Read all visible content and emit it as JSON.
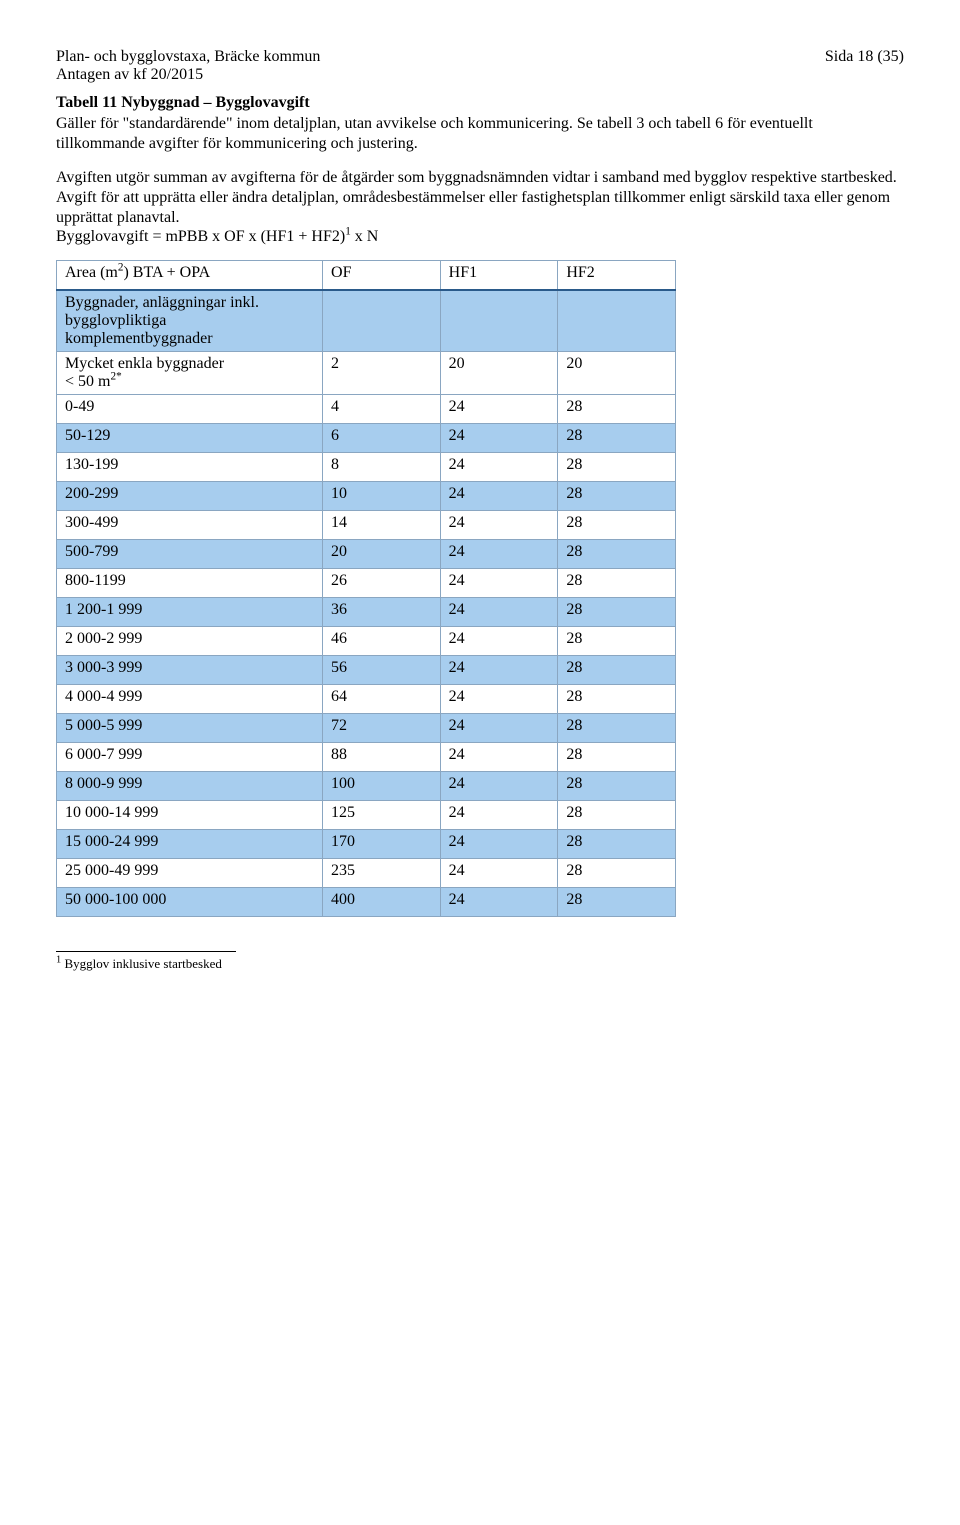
{
  "header": {
    "left_top": "Plan- och bygglovstaxa, Bräcke kommun",
    "left_sub": "Antagen av kf 20/2015",
    "right_top": "Sida 18 (35)"
  },
  "title": "Tabell 11 Nybyggnad – Bygglovavgift",
  "para1_a": "Gäller för \"standardärende\" inom detaljplan, utan avvikelse och kommunicering. Se tabell 3 och tabell 6 för eventuellt tillkommande avgifter för kommunicering och justering.",
  "para2": "Avgiften utgör summan av avgifterna för de åtgärder som byggnadsnämnden vidtar i samband med bygglov respektive startbesked.",
  "para3": "Avgift för att upprätta eller ändra detaljplan, områdesbestämmelser eller fastighetsplan tillkommer enligt särskild taxa eller genom upprättat planavtal.",
  "formula_prefix": "Bygglovavgift = mPBB x OF x (HF1 + HF2)",
  "formula_sup": "1",
  "formula_suffix": " x N",
  "table": {
    "headers": {
      "c0a": "Area (m",
      "c0sup": "2",
      "c0b": ") BTA + OPA",
      "c1": "OF",
      "c2": "HF1",
      "c3": "HF2"
    },
    "subheader": "Byggnader, anläggningar inkl. bygglovpliktiga komplementbyggnader",
    "row_simple": {
      "label_a": "Mycket enkla byggnader",
      "label_b_pre": "< 50 m",
      "label_b_sup": "2*",
      "of": "2",
      "hf1": "20",
      "hf2": "20"
    },
    "rows": [
      {
        "label": "0-49",
        "of": "4",
        "hf1": "24",
        "hf2": "28",
        "shaded": false
      },
      {
        "label": "50-129",
        "of": "6",
        "hf1": "24",
        "hf2": "28",
        "shaded": true
      },
      {
        "label": "130-199",
        "of": "8",
        "hf1": "24",
        "hf2": "28",
        "shaded": false
      },
      {
        "label": "200-299",
        "of": "10",
        "hf1": "24",
        "hf2": "28",
        "shaded": true
      },
      {
        "label": "300-499",
        "of": "14",
        "hf1": "24",
        "hf2": "28",
        "shaded": false
      },
      {
        "label": "500-799",
        "of": "20",
        "hf1": "24",
        "hf2": "28",
        "shaded": true
      },
      {
        "label": "800-1199",
        "of": "26",
        "hf1": "24",
        "hf2": "28",
        "shaded": false
      },
      {
        "label": "1 200-1 999",
        "of": "36",
        "hf1": "24",
        "hf2": "28",
        "shaded": true
      },
      {
        "label": "2 000-2 999",
        "of": "46",
        "hf1": "24",
        "hf2": "28",
        "shaded": false
      },
      {
        "label": "3 000-3 999",
        "of": "56",
        "hf1": "24",
        "hf2": "28",
        "shaded": true
      },
      {
        "label": "4 000-4 999",
        "of": "64",
        "hf1": "24",
        "hf2": "28",
        "shaded": false
      },
      {
        "label": "5 000-5 999",
        "of": "72",
        "hf1": "24",
        "hf2": "28",
        "shaded": true
      },
      {
        "label": "6 000-7 999",
        "of": "88",
        "hf1": "24",
        "hf2": "28",
        "shaded": false
      },
      {
        "label": "8 000-9 999",
        "of": "100",
        "hf1": "24",
        "hf2": "28",
        "shaded": true
      },
      {
        "label": "10 000-14 999",
        "of": "125",
        "hf1": "24",
        "hf2": "28",
        "shaded": false
      },
      {
        "label": "15 000-24 999",
        "of": "170",
        "hf1": "24",
        "hf2": "28",
        "shaded": true
      },
      {
        "label": "25 000-49 999",
        "of": "235",
        "hf1": "24",
        "hf2": "28",
        "shaded": false
      },
      {
        "label": "50 000-100 000",
        "of": "400",
        "hf1": "24",
        "hf2": "28",
        "shaded": true
      }
    ]
  },
  "footnote": {
    "sup": "1",
    "text": " Bygglov inklusive startbesked"
  }
}
